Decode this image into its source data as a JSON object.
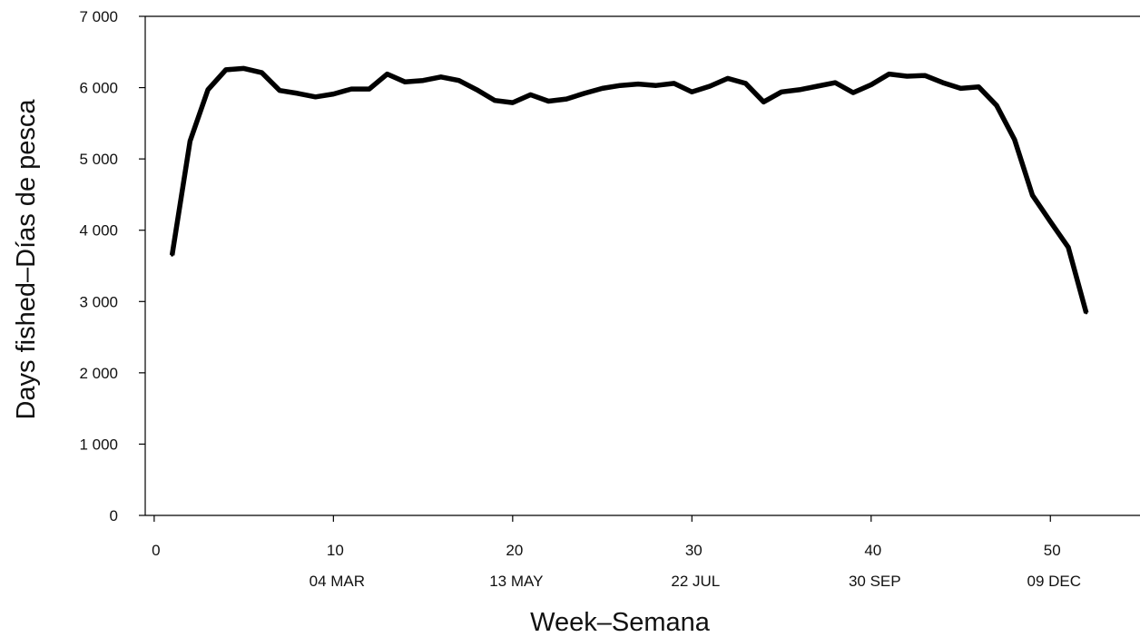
{
  "chart_data": {
    "type": "line",
    "title": "",
    "xlabel": "Week–Semana",
    "ylabel": "Days fished–Días de pesca",
    "xlim": [
      -0.5,
      55
    ],
    "ylim": [
      0,
      7000
    ],
    "x_ticks": [
      0,
      10,
      20,
      30,
      40,
      50
    ],
    "x_tick_labels": [
      "0",
      "10",
      "20",
      "30",
      "40",
      "50"
    ],
    "x_date_ticks": [
      {
        "x": 10,
        "label": "04 MAR"
      },
      {
        "x": 20,
        "label": "13 MAY"
      },
      {
        "x": 30,
        "label": "22 JUL"
      },
      {
        "x": 40,
        "label": "30 SEP"
      },
      {
        "x": 50,
        "label": "09 DEC"
      }
    ],
    "y_ticks": [
      0,
      1000,
      2000,
      3000,
      4000,
      5000,
      6000,
      7000
    ],
    "y_tick_labels": [
      "0",
      "1 000",
      "2 000",
      "3 000",
      "4 000",
      "5 000",
      "6 000",
      "7 000"
    ],
    "grid": false,
    "line_color": "#000000",
    "series": [
      {
        "x": [
          1,
          2,
          3,
          4,
          5,
          6,
          7,
          8,
          9,
          10,
          11,
          12,
          13,
          14,
          15,
          16,
          17,
          18,
          19,
          20,
          21,
          22,
          23,
          24,
          25,
          26,
          27,
          28,
          29,
          30,
          31,
          32,
          33,
          34,
          35,
          36,
          37,
          38,
          39,
          40,
          41,
          42,
          43,
          44,
          45,
          46,
          47,
          48,
          49,
          50,
          51,
          52
        ],
        "values": [
          3650,
          5250,
          5970,
          6250,
          6270,
          6210,
          5960,
          5920,
          5870,
          5910,
          5980,
          5980,
          6190,
          6080,
          6100,
          6150,
          6100,
          5970,
          5820,
          5790,
          5900,
          5810,
          5840,
          5920,
          5990,
          6030,
          6050,
          6030,
          6060,
          5940,
          6020,
          6130,
          6060,
          5800,
          5940,
          5970,
          6020,
          6070,
          5930,
          6040,
          6190,
          6160,
          6170,
          6070,
          5990,
          6010,
          5750,
          5270,
          4490,
          4120,
          3760,
          2840
        ]
      }
    ]
  }
}
